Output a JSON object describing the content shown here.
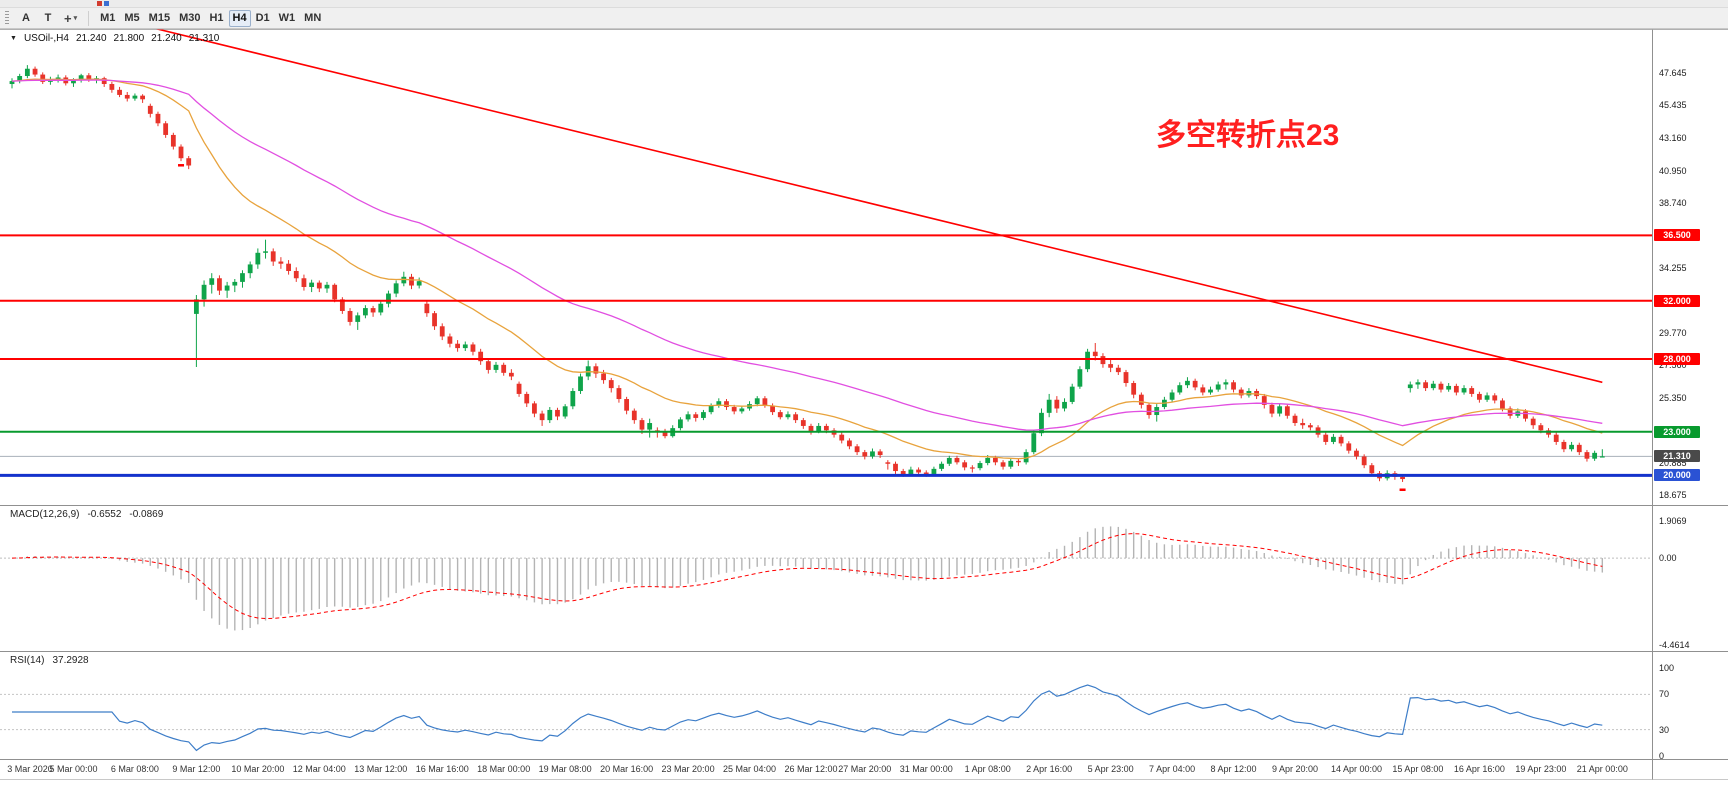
{
  "toolbar": {
    "arrow_tool_label": "A",
    "text_tool_label": "T",
    "crosshair_glyph": "+",
    "caret_glyph": "▾",
    "timeframes": [
      "M1",
      "M5",
      "M15",
      "M30",
      "H1",
      "H4",
      "D1",
      "W1",
      "MN"
    ],
    "active_timeframe": "H4"
  },
  "symbol_info": {
    "dropdown_glyph": "▼",
    "symbol_period": "USOil-,H4",
    "open": "21.240",
    "high": "21.800",
    "low": "21.240",
    "close": "21.310"
  },
  "annotation": {
    "text": "多空转折点23",
    "color": "#ff1f1f"
  },
  "price_scale": {
    "ticks": [
      47.645,
      45.435,
      43.16,
      40.95,
      38.74,
      34.255,
      29.77,
      27.56,
      25.35,
      20.885,
      18.675
    ]
  },
  "levels": [
    {
      "value": 36.5,
      "label": "36.500",
      "color": "#ff0000",
      "badge": "#ff0000",
      "width": 2
    },
    {
      "value": 32.0,
      "label": "32.000",
      "color": "#ff0000",
      "badge": "#ff0000",
      "width": 2
    },
    {
      "value": 28.0,
      "label": "28.000",
      "color": "#ff0000",
      "badge": "#ff0000",
      "width": 2
    },
    {
      "value": 23.0,
      "label": "23.000",
      "color": "#089a2e",
      "badge": "#089a2e",
      "width": 2
    },
    {
      "value": 20.0,
      "label": "20.000",
      "color": "#1433cc",
      "badge": "#2a52d4",
      "width": 3
    }
  ],
  "current_price": {
    "value": 21.31,
    "label": "21.310",
    "badge": "#4a4a4a",
    "line": "#a8b0ba"
  },
  "time_axis": {
    "labels": [
      "3 Mar 2020",
      "5 Mar 00:00",
      "6 Mar 08:00",
      "9 Mar 12:00",
      "10 Mar 20:00",
      "12 Mar 04:00",
      "13 Mar 12:00",
      "16 Mar 16:00",
      "18 Mar 00:00",
      "19 Mar 08:00",
      "20 Mar 16:00",
      "23 Mar 20:00",
      "25 Mar 04:00",
      "26 Mar 12:00",
      "27 Mar 20:00",
      "31 Mar 00:00",
      "1 Apr 08:00",
      "2 Apr 16:00",
      "5 Apr 23:00",
      "7 Apr 04:00",
      "8 Apr 12:00",
      "9 Apr 20:00",
      "14 Apr 00:00",
      "15 Apr 08:00",
      "16 Apr 16:00",
      "19 Apr 23:00",
      "21 Apr 00:00"
    ]
  },
  "chart_data": {
    "type": "candlestick",
    "symbol": "USOil-",
    "timeframe": "H4",
    "price_range": [
      18.0,
      50.2
    ],
    "colors": {
      "up": "#0fa44a",
      "down": "#e8332a",
      "ma_fast": "#e8a33d",
      "ma_slow": "#e14fe1",
      "trend": "#ff0000",
      "macd_hist": "#b4b4b4",
      "macd_signal": "#ff0000",
      "rsi": "#3d7dc8"
    },
    "candles": [
      [
        46.9,
        47.3,
        46.6,
        47.1
      ],
      [
        47.1,
        47.6,
        46.95,
        47.45
      ],
      [
        47.45,
        48.2,
        47.3,
        47.95
      ],
      [
        47.95,
        48.1,
        47.4,
        47.55
      ],
      [
        47.55,
        47.7,
        46.9,
        47.05
      ],
      [
        47.05,
        47.4,
        46.85,
        47.2
      ],
      [
        47.2,
        47.55,
        47.0,
        47.35
      ],
      [
        47.35,
        47.5,
        46.8,
        46.95
      ],
      [
        46.95,
        47.3,
        46.7,
        47.15
      ],
      [
        47.15,
        47.6,
        47.0,
        47.5
      ],
      [
        47.5,
        47.65,
        47.05,
        47.2
      ],
      [
        47.2,
        47.45,
        46.95,
        47.3
      ],
      [
        47.3,
        47.4,
        46.7,
        46.9
      ],
      [
        46.9,
        47.05,
        46.3,
        46.5
      ],
      [
        46.5,
        46.7,
        46.0,
        46.15
      ],
      [
        46.15,
        46.35,
        45.7,
        45.9
      ],
      [
        45.9,
        46.25,
        45.75,
        46.1
      ],
      [
        46.1,
        46.2,
        45.6,
        45.85
      ],
      [
        45.4,
        45.55,
        44.6,
        44.85
      ],
      [
        44.85,
        45.0,
        44.0,
        44.2
      ],
      [
        44.2,
        44.35,
        43.2,
        43.4
      ],
      [
        43.4,
        43.55,
        42.4,
        42.6
      ],
      [
        42.6,
        42.75,
        41.6,
        41.8
      ],
      [
        41.8,
        41.95,
        41.05,
        41.3
      ],
      [
        31.1,
        32.4,
        27.45,
        32.1
      ],
      [
        32.1,
        33.4,
        31.6,
        33.1
      ],
      [
        33.1,
        33.9,
        32.5,
        33.55
      ],
      [
        33.55,
        33.75,
        32.4,
        32.7
      ],
      [
        32.7,
        33.3,
        32.2,
        33.05
      ],
      [
        33.05,
        33.5,
        32.6,
        33.3
      ],
      [
        33.3,
        34.1,
        32.9,
        33.9
      ],
      [
        33.9,
        34.7,
        33.55,
        34.5
      ],
      [
        34.5,
        35.6,
        34.2,
        35.3
      ],
      [
        35.3,
        36.2,
        34.9,
        35.4
      ],
      [
        35.4,
        35.6,
        34.4,
        34.7
      ],
      [
        34.7,
        35.0,
        34.2,
        34.55
      ],
      [
        34.55,
        34.8,
        33.8,
        34.05
      ],
      [
        34.05,
        34.3,
        33.3,
        33.55
      ],
      [
        33.55,
        33.8,
        32.7,
        32.95
      ],
      [
        32.95,
        33.45,
        32.6,
        33.25
      ],
      [
        33.25,
        33.4,
        32.6,
        32.85
      ],
      [
        32.85,
        33.3,
        32.55,
        33.1
      ],
      [
        33.1,
        33.2,
        31.9,
        32.1
      ],
      [
        32.1,
        32.25,
        31.1,
        31.3
      ],
      [
        31.3,
        31.5,
        30.3,
        30.55
      ],
      [
        30.55,
        31.2,
        30.0,
        31.0
      ],
      [
        31.0,
        31.7,
        30.8,
        31.5
      ],
      [
        31.5,
        31.65,
        30.9,
        31.2
      ],
      [
        31.2,
        32.0,
        31.0,
        31.8
      ],
      [
        31.8,
        32.7,
        31.55,
        32.5
      ],
      [
        32.5,
        33.4,
        32.25,
        33.2
      ],
      [
        33.2,
        34.0,
        33.0,
        33.65
      ],
      [
        33.65,
        33.85,
        32.8,
        33.05
      ],
      [
        33.05,
        33.6,
        32.85,
        33.35
      ],
      [
        31.8,
        32.0,
        30.9,
        31.15
      ],
      [
        31.15,
        31.3,
        30.0,
        30.25
      ],
      [
        30.25,
        30.45,
        29.3,
        29.55
      ],
      [
        29.55,
        29.75,
        28.8,
        29.05
      ],
      [
        29.05,
        29.3,
        28.5,
        28.75
      ],
      [
        28.75,
        29.2,
        28.55,
        29.0
      ],
      [
        29.0,
        29.15,
        28.25,
        28.5
      ],
      [
        28.5,
        28.7,
        27.6,
        27.85
      ],
      [
        27.85,
        28.05,
        27.0,
        27.25
      ],
      [
        27.25,
        27.8,
        27.05,
        27.6
      ],
      [
        27.6,
        27.75,
        26.85,
        27.05
      ],
      [
        27.05,
        27.3,
        26.55,
        26.8
      ],
      [
        26.3,
        26.45,
        25.4,
        25.6
      ],
      [
        25.6,
        25.75,
        24.7,
        24.95
      ],
      [
        24.95,
        25.1,
        24.0,
        24.25
      ],
      [
        24.25,
        24.45,
        23.4,
        23.8
      ],
      [
        23.8,
        24.7,
        23.6,
        24.5
      ],
      [
        24.5,
        24.65,
        23.8,
        24.05
      ],
      [
        24.05,
        24.9,
        23.9,
        24.75
      ],
      [
        24.75,
        26.0,
        24.55,
        25.8
      ],
      [
        25.8,
        27.0,
        25.6,
        26.8
      ],
      [
        26.8,
        27.9,
        26.55,
        27.5
      ],
      [
        27.5,
        27.7,
        26.7,
        27.0
      ],
      [
        27.0,
        27.25,
        26.3,
        26.55
      ],
      [
        26.55,
        26.7,
        25.7,
        26.0
      ],
      [
        26.0,
        26.2,
        25.0,
        25.25
      ],
      [
        25.25,
        25.4,
        24.2,
        24.45
      ],
      [
        24.45,
        24.6,
        23.55,
        23.8
      ],
      [
        23.8,
        23.95,
        22.85,
        23.15
      ],
      [
        23.15,
        23.9,
        22.6,
        23.6
      ],
      [
        23.1,
        23.3,
        22.6,
        22.95
      ],
      [
        22.95,
        23.2,
        22.55,
        22.7
      ],
      [
        22.7,
        23.45,
        22.6,
        23.25
      ],
      [
        23.25,
        24.0,
        23.1,
        23.85
      ],
      [
        23.85,
        24.4,
        23.7,
        24.2
      ],
      [
        24.2,
        24.35,
        23.7,
        23.95
      ],
      [
        23.95,
        24.5,
        23.8,
        24.35
      ],
      [
        24.35,
        24.95,
        24.2,
        24.8
      ],
      [
        24.8,
        25.3,
        24.65,
        25.1
      ],
      [
        25.1,
        25.25,
        24.5,
        24.7
      ],
      [
        24.7,
        24.85,
        24.2,
        24.4
      ],
      [
        24.4,
        24.8,
        24.25,
        24.6
      ],
      [
        24.6,
        25.1,
        24.45,
        24.9
      ],
      [
        24.9,
        25.45,
        24.75,
        25.3
      ],
      [
        25.3,
        25.45,
        24.65,
        24.8
      ],
      [
        24.8,
        24.95,
        24.15,
        24.35
      ],
      [
        24.35,
        24.5,
        23.85,
        24.0
      ],
      [
        24.0,
        24.4,
        23.85,
        24.2
      ],
      [
        24.2,
        24.35,
        23.6,
        23.8
      ],
      [
        23.8,
        23.95,
        23.2,
        23.4
      ],
      [
        23.4,
        23.55,
        22.8,
        23.0
      ],
      [
        23.0,
        23.6,
        22.9,
        23.4
      ],
      [
        23.4,
        23.55,
        22.9,
        23.1
      ],
      [
        23.1,
        23.25,
        22.6,
        22.8
      ],
      [
        22.8,
        22.95,
        22.2,
        22.4
      ],
      [
        22.4,
        22.55,
        21.8,
        22.0
      ],
      [
        22.0,
        22.15,
        21.4,
        21.6
      ],
      [
        21.6,
        21.75,
        21.1,
        21.3
      ],
      [
        21.3,
        21.85,
        21.15,
        21.65
      ],
      [
        21.65,
        21.8,
        21.2,
        21.4
      ],
      [
        20.9,
        21.05,
        20.4,
        20.8
      ],
      [
        20.8,
        20.95,
        20.1,
        20.3
      ],
      [
        20.3,
        20.45,
        19.9,
        20.05
      ],
      [
        20.05,
        20.6,
        19.95,
        20.4
      ],
      [
        20.4,
        20.55,
        20.0,
        20.2
      ],
      [
        20.2,
        20.35,
        19.9,
        20.1
      ],
      [
        20.1,
        20.6,
        20.0,
        20.45
      ],
      [
        20.45,
        20.95,
        20.3,
        20.8
      ],
      [
        20.8,
        21.35,
        20.65,
        21.2
      ],
      [
        21.2,
        21.35,
        20.75,
        20.9
      ],
      [
        20.9,
        21.05,
        20.35,
        20.55
      ],
      [
        20.55,
        20.7,
        20.2,
        20.5
      ],
      [
        20.5,
        21.0,
        20.35,
        20.85
      ],
      [
        20.85,
        21.4,
        20.7,
        21.2
      ],
      [
        21.2,
        21.35,
        20.7,
        20.9
      ],
      [
        20.9,
        21.05,
        20.4,
        20.6
      ],
      [
        20.6,
        21.15,
        20.45,
        21.0
      ],
      [
        21.0,
        21.15,
        20.65,
        20.9
      ],
      [
        20.9,
        21.8,
        20.75,
        21.6
      ],
      [
        21.6,
        23.1,
        21.45,
        22.9
      ],
      [
        22.9,
        24.6,
        22.7,
        24.3
      ],
      [
        24.3,
        25.6,
        24.0,
        25.2
      ],
      [
        25.2,
        25.45,
        24.3,
        24.6
      ],
      [
        24.6,
        25.3,
        24.4,
        25.05
      ],
      [
        25.05,
        26.3,
        24.9,
        26.1
      ],
      [
        26.1,
        27.5,
        25.95,
        27.3
      ],
      [
        27.3,
        28.7,
        27.1,
        28.5
      ],
      [
        28.5,
        29.1,
        27.9,
        28.2
      ],
      [
        28.2,
        28.4,
        27.4,
        27.65
      ],
      [
        27.65,
        27.95,
        27.1,
        27.4
      ],
      [
        27.4,
        27.6,
        26.9,
        27.1
      ],
      [
        27.1,
        27.25,
        26.1,
        26.35
      ],
      [
        26.35,
        26.5,
        25.3,
        25.55
      ],
      [
        25.55,
        25.7,
        24.6,
        24.85
      ],
      [
        24.85,
        25.0,
        23.9,
        24.15
      ],
      [
        24.15,
        24.9,
        23.7,
        24.7
      ],
      [
        24.7,
        25.4,
        24.55,
        25.2
      ],
      [
        25.2,
        25.9,
        25.05,
        25.7
      ],
      [
        25.7,
        26.4,
        25.55,
        26.2
      ],
      [
        26.2,
        26.75,
        26.0,
        26.5
      ],
      [
        26.5,
        26.65,
        25.85,
        26.05
      ],
      [
        26.05,
        26.25,
        25.5,
        25.7
      ],
      [
        25.7,
        26.1,
        25.55,
        25.9
      ],
      [
        25.9,
        26.45,
        25.75,
        26.25
      ],
      [
        26.25,
        26.6,
        25.9,
        26.4
      ],
      [
        26.4,
        26.55,
        25.7,
        25.9
      ],
      [
        25.9,
        26.05,
        25.3,
        25.5
      ],
      [
        25.5,
        26.0,
        25.35,
        25.8
      ],
      [
        25.8,
        25.95,
        25.25,
        25.45
      ],
      [
        25.45,
        25.6,
        24.6,
        24.85
      ],
      [
        24.85,
        25.0,
        24.0,
        24.25
      ],
      [
        24.25,
        24.95,
        24.05,
        24.75
      ],
      [
        24.75,
        24.9,
        23.9,
        24.1
      ],
      [
        24.1,
        24.25,
        23.4,
        23.6
      ],
      [
        23.6,
        23.9,
        23.2,
        23.45
      ],
      [
        23.45,
        23.6,
        23.1,
        23.3
      ],
      [
        23.3,
        23.45,
        22.6,
        22.8
      ],
      [
        22.8,
        22.95,
        22.1,
        22.3
      ],
      [
        22.3,
        22.85,
        22.15,
        22.65
      ],
      [
        22.65,
        22.8,
        22.0,
        22.2
      ],
      [
        22.2,
        22.35,
        21.5,
        21.7
      ],
      [
        21.7,
        21.85,
        21.1,
        21.3
      ],
      [
        21.3,
        21.45,
        20.5,
        20.7
      ],
      [
        20.7,
        20.85,
        19.95,
        20.15
      ],
      [
        20.15,
        20.3,
        19.6,
        19.8
      ],
      [
        19.8,
        20.35,
        19.65,
        20.15
      ],
      [
        20.15,
        20.3,
        19.7,
        19.9
      ],
      [
        19.9,
        20.05,
        19.55,
        19.75
      ],
      [
        26.0,
        26.45,
        25.7,
        26.25
      ],
      [
        26.25,
        26.6,
        25.95,
        26.4
      ],
      [
        26.4,
        26.55,
        25.8,
        26.0
      ],
      [
        26.0,
        26.5,
        25.85,
        26.3
      ],
      [
        26.3,
        26.45,
        25.7,
        25.9
      ],
      [
        25.9,
        26.35,
        25.75,
        26.15
      ],
      [
        26.15,
        26.3,
        25.5,
        25.7
      ],
      [
        25.7,
        26.2,
        25.55,
        26.0
      ],
      [
        26.0,
        26.15,
        25.4,
        25.6
      ],
      [
        25.6,
        25.75,
        25.0,
        25.2
      ],
      [
        25.2,
        25.7,
        25.05,
        25.5
      ],
      [
        25.5,
        25.65,
        24.95,
        25.15
      ],
      [
        25.15,
        25.3,
        24.4,
        24.6
      ],
      [
        24.6,
        24.75,
        23.9,
        24.1
      ],
      [
        24.1,
        24.6,
        23.95,
        24.4
      ],
      [
        24.4,
        24.55,
        23.7,
        23.9
      ],
      [
        23.9,
        24.05,
        23.2,
        23.45
      ],
      [
        23.45,
        23.6,
        22.9,
        23.1
      ],
      [
        23.1,
        23.25,
        22.6,
        22.8
      ],
      [
        22.8,
        22.95,
        22.1,
        22.3
      ],
      [
        22.3,
        22.45,
        21.6,
        21.8
      ],
      [
        21.8,
        22.3,
        21.65,
        22.1
      ],
      [
        22.1,
        22.25,
        21.4,
        21.6
      ],
      [
        21.6,
        21.75,
        20.95,
        21.15
      ],
      [
        21.15,
        21.7,
        21.0,
        21.55
      ],
      [
        21.24,
        21.8,
        21.24,
        21.31
      ]
    ],
    "overlays": {
      "ma_fast": {
        "type": "ema",
        "period": 21
      },
      "ma_slow": {
        "type": "ema",
        "period": 55
      },
      "trendline": {
        "from_index": 18,
        "from_price": 50.8,
        "to_index": 207,
        "to_price": 26.4
      }
    },
    "markers": [
      {
        "index": 22,
        "price": 41.4
      },
      {
        "index": 181,
        "price": 19.1
      }
    ],
    "macd": {
      "label": "MACD(12,26,9)",
      "value_main": "-0.6552",
      "value_signal": "-0.0869",
      "fast": 12,
      "slow": 26,
      "signal": 9,
      "scale_max_label": "1.9069",
      "scale_zero_label": "0.00",
      "scale_min_label": "-4.4614",
      "scale_max": 1.9069,
      "scale_min": -4.4614
    },
    "rsi": {
      "label": "RSI(14)",
      "value": "37.2928",
      "period": 14,
      "levels": [
        100,
        70,
        30,
        0
      ]
    }
  }
}
